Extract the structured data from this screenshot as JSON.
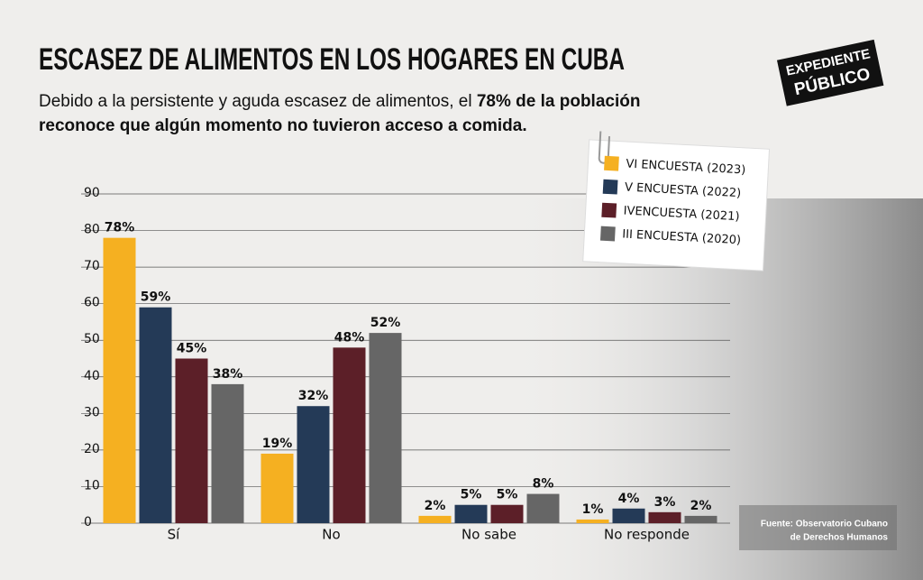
{
  "chart_data": {
    "type": "bar",
    "title": "ESCASEZ DE ALIMENTOS EN LOS HOGARES EN CUBA",
    "subtitle": [
      "Debido a la persistente y aguda escasez de alimentos, el ",
      "78% de la población",
      "reconoce que algún momento no tuvieron acceso a comida."
    ],
    "logo": [
      "EXPEDIENTE",
      "PÚBLICO"
    ],
    "source": [
      "Fuente: Observatorio Cubano",
      "de Derechos Humanos"
    ],
    "categories": [
      "Sí",
      "No",
      "No sabe",
      "No responde"
    ],
    "series": [
      {
        "name": "VI ENCUESTA (2023)",
        "color": "#f5b021",
        "values": [
          78,
          19,
          2,
          1
        ],
        "value_labels": [
          "78%",
          "19%",
          "2%",
          "1%"
        ]
      },
      {
        "name": "V ENCUESTA (2022)",
        "color": "#243a57",
        "values": [
          59,
          32,
          5,
          4
        ],
        "value_labels": [
          "59%",
          "32%",
          "5%",
          "4%"
        ]
      },
      {
        "name": "IVENCUESTA (2021)",
        "color": "#5c1f28",
        "values": [
          45,
          48,
          5,
          3
        ],
        "value_labels": [
          "45%",
          "48%",
          "5%",
          "3%"
        ]
      },
      {
        "name": "III ENCUESTA (2020)",
        "color": "#666666",
        "values": [
          38,
          52,
          8,
          2
        ],
        "value_labels": [
          "38%",
          "52%",
          "8%",
          "2%"
        ]
      }
    ],
    "ylim": [
      0,
      90
    ],
    "yticks": [
      0,
      10,
      20,
      30,
      40,
      50,
      60,
      70,
      80,
      90
    ],
    "grid": true
  }
}
